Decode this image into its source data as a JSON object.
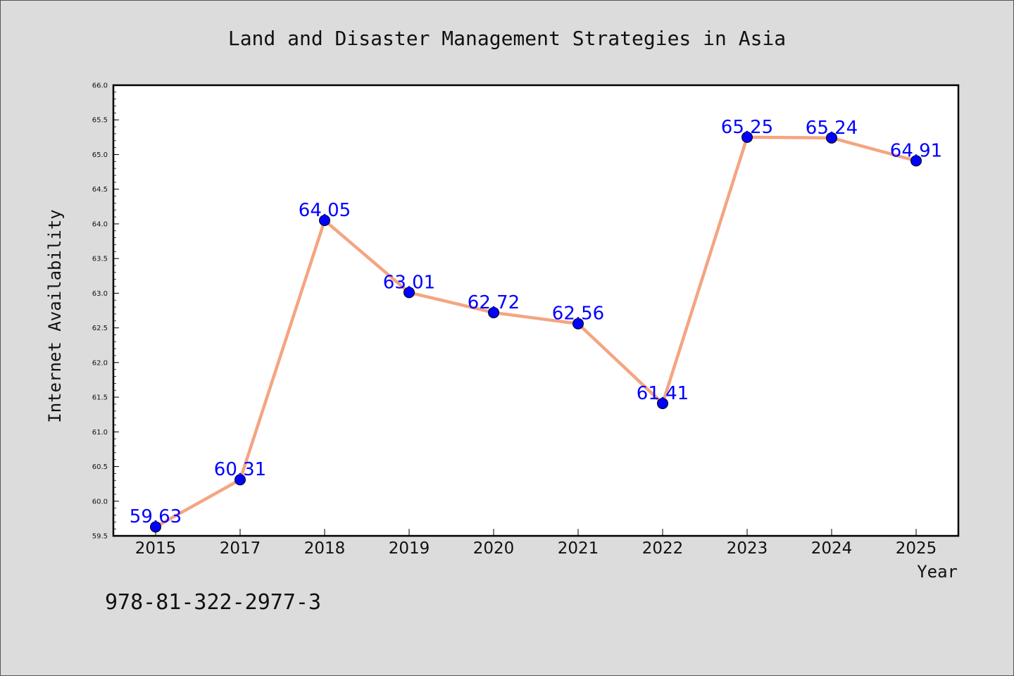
{
  "chart_data": {
    "type": "line",
    "title": "Land and Disaster Management Strategies in Asia",
    "xlabel": "Year",
    "ylabel": "Internet Availability",
    "categories": [
      "2015",
      "2017",
      "2018",
      "2019",
      "2020",
      "2021",
      "2022",
      "2023",
      "2024",
      "2025"
    ],
    "values": [
      59.63,
      60.31,
      64.05,
      63.01,
      62.72,
      62.56,
      61.41,
      65.25,
      65.24,
      64.91
    ],
    "data_labels": [
      "59.63",
      "60.31",
      "64.05",
      "63.01",
      "62.72",
      "62.56",
      "61.41",
      "65.25",
      "65.24",
      "64.91"
    ],
    "ylim": [
      59.5,
      66.0
    ],
    "yticks": [
      "59.5",
      "60.0",
      "60.5",
      "61.0",
      "61.5",
      "62.0",
      "62.5",
      "63.0",
      "63.5",
      "64.0",
      "64.5",
      "65.0",
      "65.5",
      "66.0"
    ],
    "grid": false,
    "line_color": "#f4a582",
    "marker_color": "#0000ff",
    "label_color": "#0000ff"
  },
  "footnote": "978-81-322-2977-3"
}
